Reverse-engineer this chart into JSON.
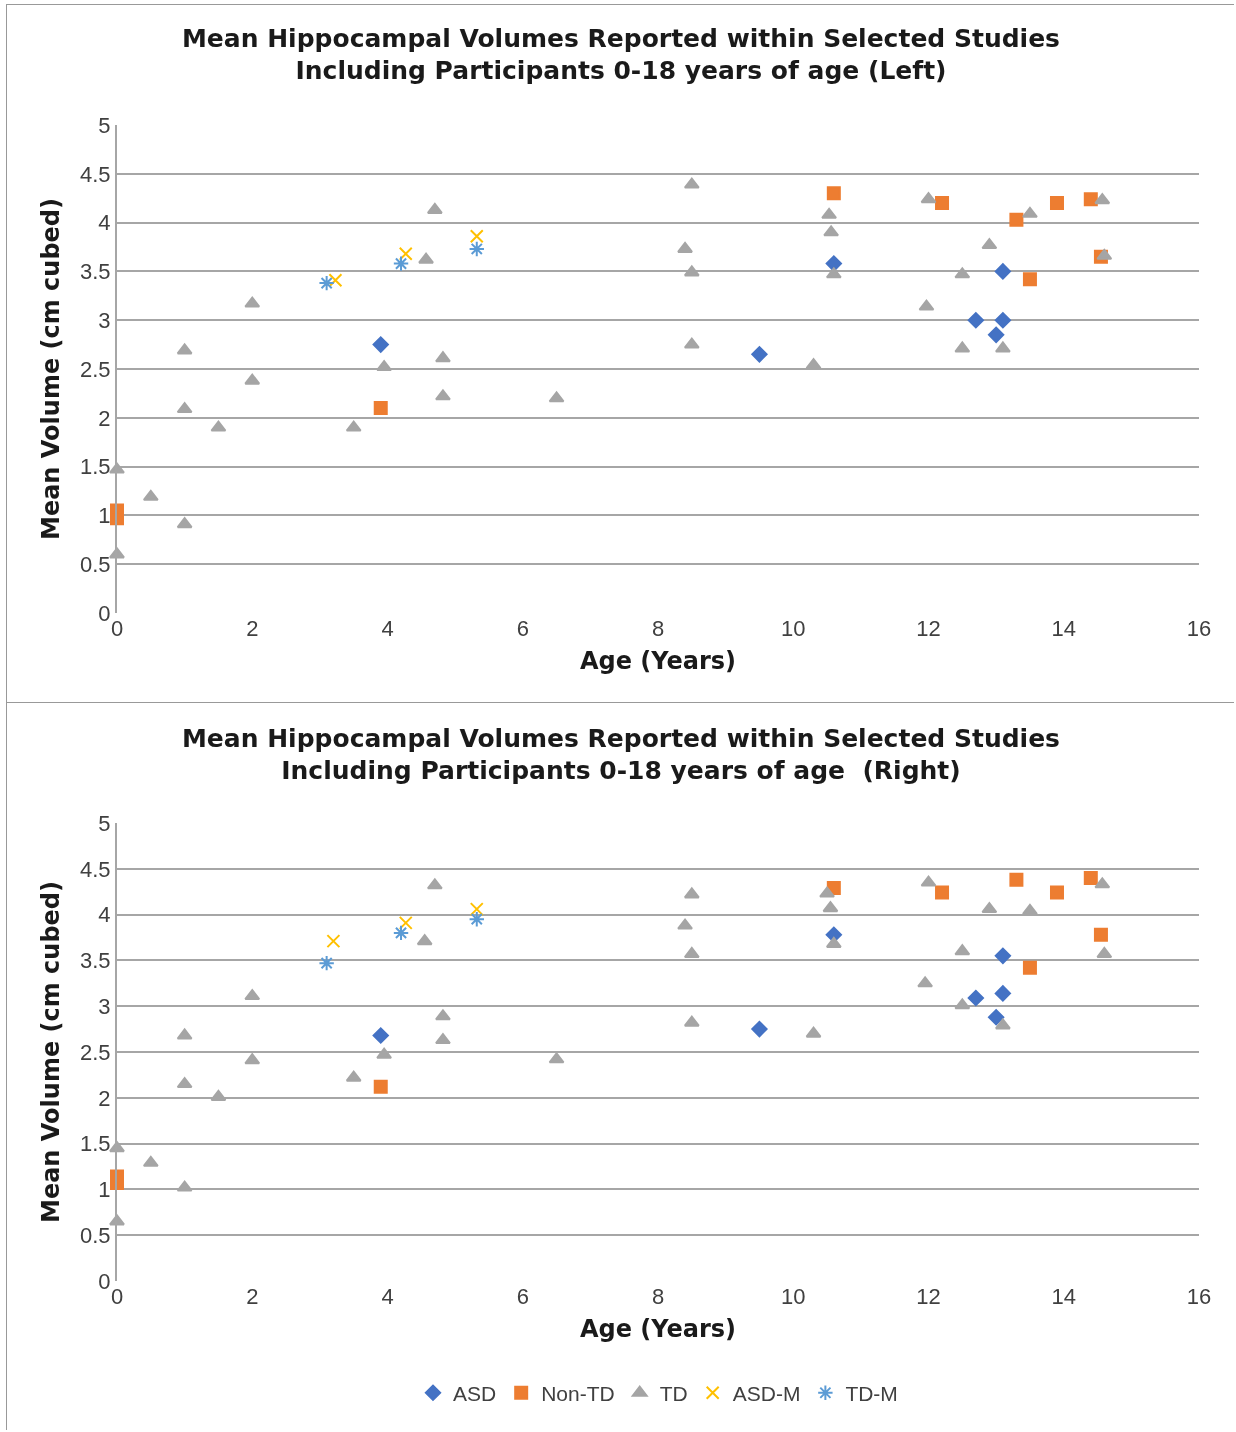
{
  "chart_data": [
    {
      "type": "scatter",
      "title": "Mean Hippocampal Volumes Reported within Selected Studies\nIncluding Participants 0-18 years of age (Left)",
      "xlabel": "Age (Years)",
      "ylabel": "Mean Volume (cm cubed)",
      "xlim": [
        0,
        16
      ],
      "xticks": [
        0,
        2,
        4,
        6,
        8,
        10,
        12,
        14,
        16
      ],
      "ylim": [
        0,
        5
      ],
      "yticks": [
        0,
        0.5,
        1,
        1.5,
        2,
        2.5,
        3,
        3.5,
        4,
        4.5,
        5
      ],
      "grid": "y",
      "legend": false,
      "series": [
        {
          "color": "#4472c4",
          "marker": "diamond",
          "x": [
            3.9,
            9.5,
            10.6,
            13.1,
            12.7,
            13.1,
            13.0
          ],
          "values": [
            2.75,
            2.65,
            3.58,
            3.5,
            3.0,
            3.0,
            2.85
          ]
        },
        {
          "color": "#ed7d31",
          "marker": "square",
          "x": [
            0,
            0,
            3.9,
            10.6,
            12.2,
            13.3,
            13.9,
            14.4,
            14.55,
            13.5
          ],
          "values": [
            1.05,
            0.97,
            2.1,
            4.3,
            4.2,
            4.03,
            4.2,
            4.24,
            3.65,
            3.42
          ]
        },
        {
          "color": "#a5a5a5",
          "marker": "triangle",
          "x": [
            0,
            0,
            0.5,
            1,
            1,
            1,
            1.5,
            2,
            2,
            3.5,
            3.95,
            4.57,
            4.7,
            4.82,
            4.82,
            6.5,
            8.5,
            8.4,
            8.5,
            8.5,
            10.3,
            10.53,
            10.56,
            10.6,
            12.0,
            11.97,
            12.5,
            12.5,
            12.9,
            13.1,
            13.5,
            14.57,
            14.6
          ],
          "values": [
            1.47,
            0.6,
            1.19,
            2.69,
            2.09,
            0.91,
            1.9,
            3.17,
            2.38,
            1.9,
            2.52,
            3.62,
            4.13,
            2.61,
            2.22,
            2.2,
            4.39,
            3.73,
            3.49,
            2.75,
            2.54,
            4.08,
            3.9,
            3.47,
            4.24,
            3.14,
            3.47,
            2.71,
            3.77,
            2.71,
            4.09,
            4.23,
            3.66
          ]
        },
        {
          "color": "#ffc000",
          "marker": "cross",
          "x": [
            3.23,
            4.27,
            5.32
          ],
          "values": [
            3.41,
            3.68,
            3.86
          ]
        },
        {
          "color": "#5b9bd5",
          "marker": "cross",
          "x": [
            3.1,
            4.2,
            5.32
          ],
          "values": [
            3.38,
            3.58,
            3.73
          ]
        }
      ]
    },
    {
      "type": "scatter",
      "title": "Mean Hippocampal Volumes Reported within Selected Studies\nIncluding Participants 0-18 years of age  (Right)",
      "xlabel": "Age (Years)",
      "ylabel": "Mean Volume (cm cubed)",
      "xlim": [
        0,
        16
      ],
      "xticks": [
        0,
        2,
        4,
        6,
        8,
        10,
        12,
        14,
        16
      ],
      "ylim": [
        0,
        5
      ],
      "yticks": [
        0,
        0.5,
        1,
        1.5,
        2,
        2.5,
        3,
        3.5,
        4,
        4.5,
        5
      ],
      "grid": "y",
      "legend": "bottom",
      "series": [
        {
          "name": "ASD",
          "color": "#4472c4",
          "marker": "diamond",
          "x": [
            3.9,
            9.5,
            10.6,
            13.1,
            12.7,
            13.1,
            13.0
          ],
          "values": [
            2.68,
            2.75,
            3.78,
            3.55,
            3.09,
            3.14,
            2.88
          ]
        },
        {
          "name": "Non-TD",
          "color": "#ed7d31",
          "marker": "square",
          "x": [
            0,
            0,
            3.9,
            10.6,
            12.2,
            13.3,
            13.9,
            14.4,
            14.55,
            13.5
          ],
          "values": [
            1.14,
            1.07,
            2.12,
            4.29,
            4.24,
            4.38,
            4.24,
            4.4,
            3.78,
            3.42
          ]
        },
        {
          "name": "TD",
          "color": "#a5a5a5",
          "marker": "triangle",
          "x": [
            0,
            0,
            0.5,
            1,
            1,
            1,
            1.5,
            2,
            2,
            3.5,
            3.95,
            4.55,
            4.7,
            4.82,
            4.82,
            6.5,
            8.5,
            8.4,
            8.5,
            8.5,
            10.3,
            10.5,
            10.55,
            10.6,
            12.0,
            11.95,
            12.5,
            12.5,
            12.9,
            13.1,
            13.5,
            14.57,
            14.6
          ],
          "values": [
            1.45,
            0.65,
            1.29,
            2.68,
            2.15,
            1.02,
            2.01,
            3.11,
            2.41,
            2.22,
            2.47,
            3.71,
            4.32,
            2.89,
            2.63,
            2.42,
            4.22,
            3.88,
            3.57,
            2.82,
            2.7,
            4.23,
            4.07,
            3.68,
            4.35,
            3.25,
            3.6,
            3.01,
            4.06,
            2.79,
            4.04,
            4.33,
            3.57
          ]
        },
        {
          "name": "ASD-M",
          "color": "#ffc000",
          "marker": "cross",
          "x": [
            3.2,
            4.27,
            5.32
          ],
          "values": [
            3.71,
            3.91,
            4.06
          ]
        },
        {
          "name": "TD-M",
          "color": "#5b9bd5",
          "marker": "cross",
          "x": [
            3.1,
            4.2,
            5.32
          ],
          "values": [
            3.47,
            3.8,
            3.95
          ]
        }
      ]
    }
  ]
}
